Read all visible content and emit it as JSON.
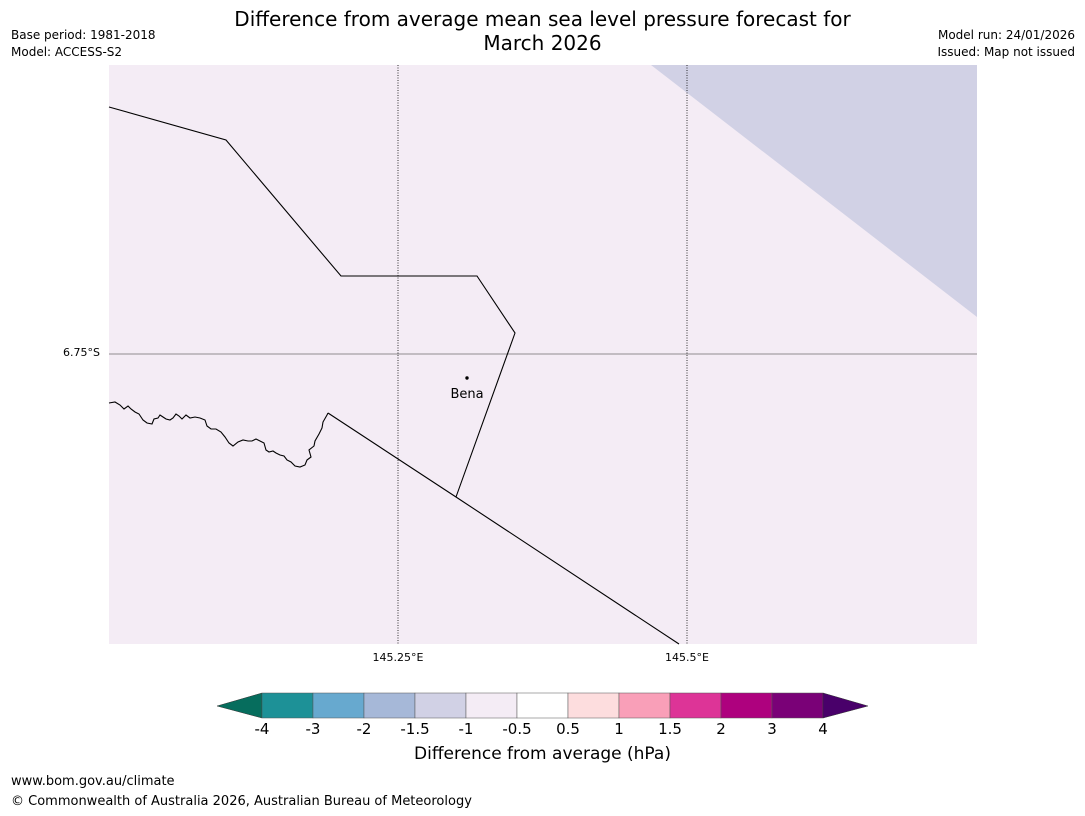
{
  "title_line1": "Difference from average mean sea level pressure forecast for",
  "title_line2": "March 2026",
  "meta": {
    "base_period": "Base period: 1981-2018",
    "model": "Model: ACCESS-S2",
    "model_run": "Model run: 24/01/2026",
    "issued": "Issued: Map not issued"
  },
  "map": {
    "latitude_label": "6.75°S",
    "longitude_labels": [
      "145.25°E",
      "145.5°E"
    ],
    "place": "Bena",
    "colors": {
      "background": "#f4ecf5",
      "shaded_region": "#d1d1e5",
      "outline": "#000000"
    },
    "shaded_region_range": "-1.5 to -1 hPa",
    "background_range": "-1 to -0.5 hPa"
  },
  "colorbar": {
    "title": "Difference from average (hPa)",
    "ticks": [
      "-4",
      "-3",
      "-2",
      "-1.5",
      "-1",
      "-0.5",
      "0.5",
      "1",
      "1.5",
      "2",
      "3",
      "4"
    ],
    "colors": {
      "below_min": "#066d5d",
      "bins": [
        "#1d9197",
        "#67a9cf",
        "#a6b8d8",
        "#d1d1e5",
        "#f4ecf5",
        "#ffffff",
        "#fdddde",
        "#f99fb8",
        "#dd3497",
        "#ae017e",
        "#7a0177"
      ],
      "above_max": "#49006a"
    }
  },
  "footer": {
    "url": "www.bom.gov.au/climate",
    "copyright": "© Commonwealth of Australia 2026, Australian Bureau of Meteorology"
  }
}
